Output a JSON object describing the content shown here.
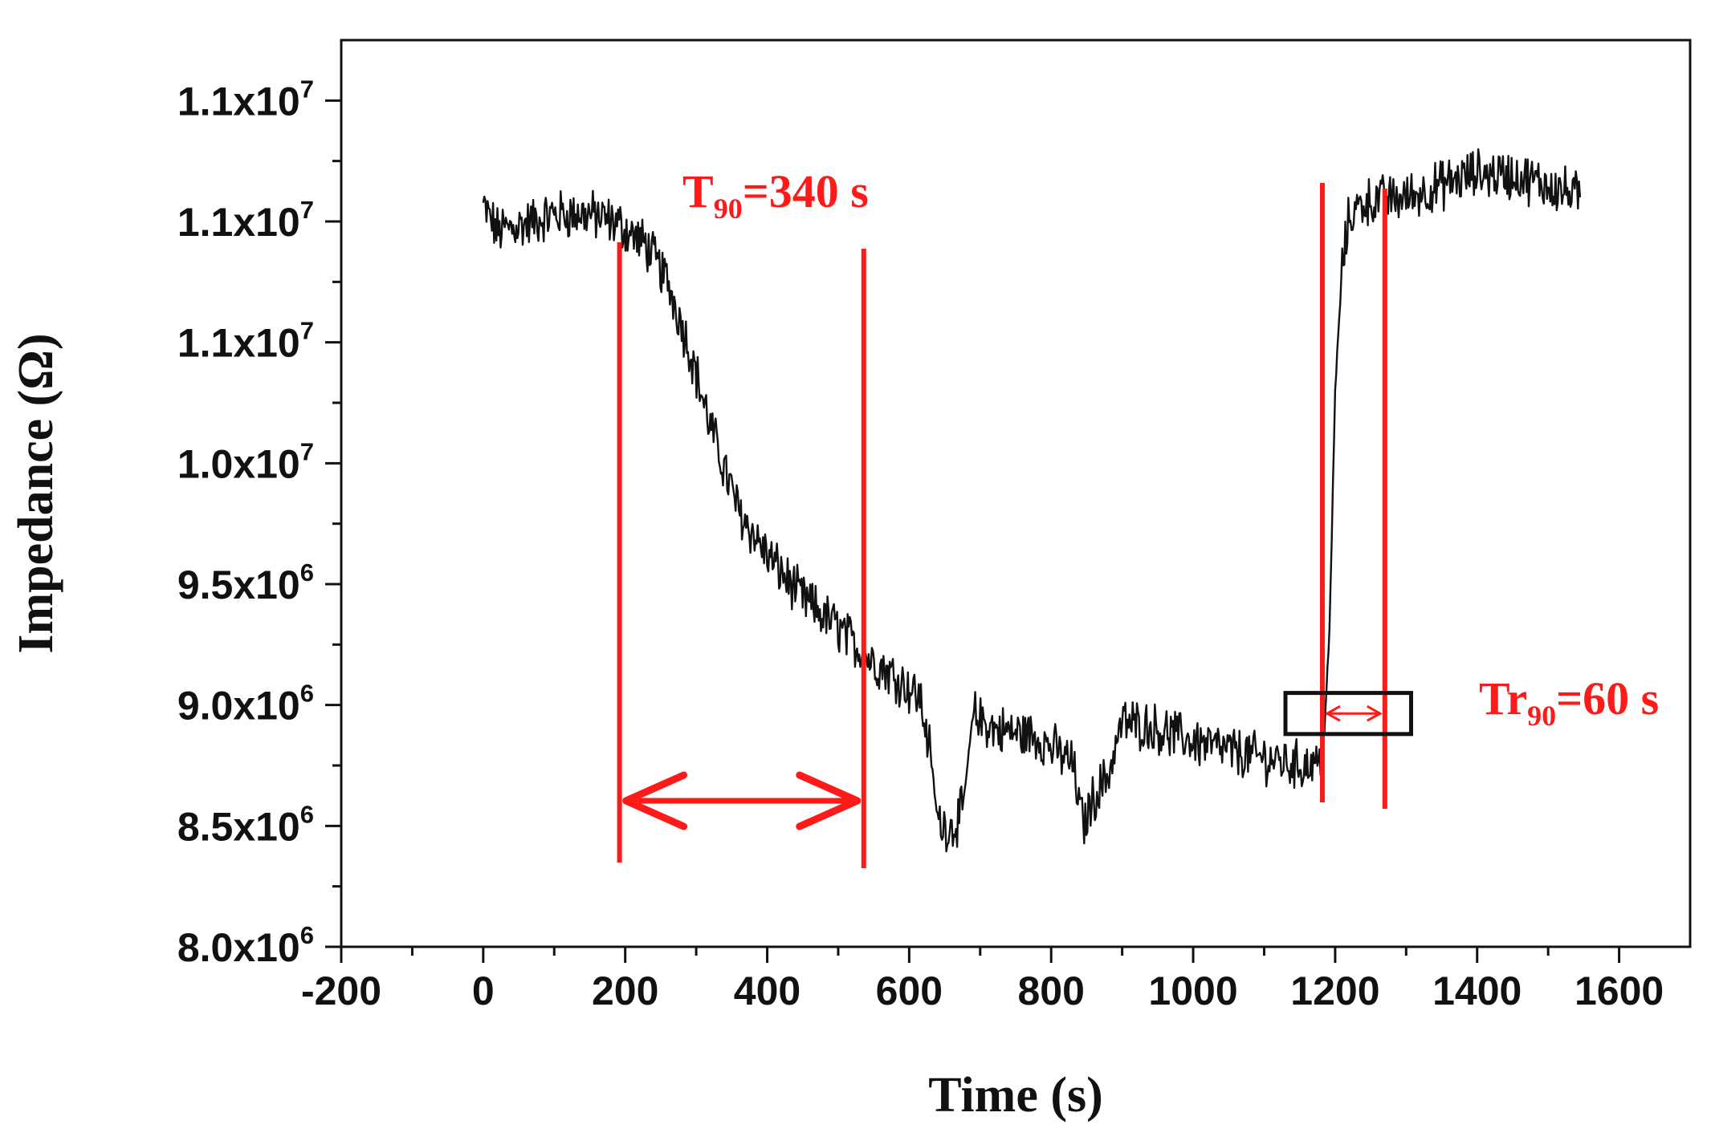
{
  "chart_data": {
    "type": "line",
    "xlabel": "Time (s)",
    "ylabel": "Impedance  (Ω)",
    "xlim": [
      -200,
      1700
    ],
    "ylim": [
      8000000,
      11750000
    ],
    "xticks": [
      -200,
      0,
      200,
      400,
      600,
      800,
      1000,
      1200,
      1400,
      1600
    ],
    "xtick_labels": [
      "-200",
      "0",
      "200",
      "400",
      "600",
      "800",
      "1000",
      "1200",
      "1400",
      "1600"
    ],
    "yticks": [
      {
        "value": 8000000,
        "mantissa": "8.0x10",
        "exponent": "6"
      },
      {
        "value": 8500000,
        "mantissa": "8.5x10",
        "exponent": "6"
      },
      {
        "value": 9000000,
        "mantissa": "9.0x10",
        "exponent": "6"
      },
      {
        "value": 9500000,
        "mantissa": "9.5x10",
        "exponent": "6"
      },
      {
        "value": 10000000,
        "mantissa": "1.0x10",
        "exponent": "7"
      },
      {
        "value": 10500000,
        "mantissa": "1.1x10",
        "exponent": "7"
      },
      {
        "value": 11000000,
        "mantissa": "1.1x10",
        "exponent": "7"
      },
      {
        "value": 11500000,
        "mantissa": "1.1x10",
        "exponent": "7"
      }
    ],
    "series": [
      {
        "name": "Impedance",
        "color": "#111111",
        "noise_amplitude": 90000,
        "x": [
          0,
          20,
          60,
          100,
          150,
          190,
          230,
          260,
          290,
          320,
          360,
          400,
          450,
          500,
          540,
          580,
          615,
          630,
          640,
          660,
          675,
          690,
          720,
          780,
          830,
          845,
          860,
          880,
          900,
          940,
          1000,
          1050,
          1100,
          1150,
          1178,
          1185,
          1192,
          1200,
          1210,
          1220,
          1240,
          1300,
          1350,
          1400,
          1450,
          1500,
          1545
        ],
        "y": [
          11060000,
          10960000,
          10990000,
          11030000,
          11030000,
          10990000,
          10900000,
          10750000,
          10480000,
          10150000,
          9800000,
          9620000,
          9440000,
          9320000,
          9200000,
          9120000,
          9030000,
          8800000,
          8520000,
          8490000,
          8560000,
          8960000,
          8900000,
          8870000,
          8760000,
          8500000,
          8620000,
          8710000,
          8930000,
          8910000,
          8850000,
          8810000,
          8780000,
          8750000,
          8760000,
          8900000,
          9300000,
          10300000,
          10820000,
          11020000,
          11080000,
          11100000,
          11150000,
          11200000,
          11190000,
          11150000,
          11100000
        ]
      }
    ],
    "annotations": {
      "t90": {
        "label": "T",
        "subscript": "90",
        "text": "=340 s",
        "x_start": 192,
        "x_end": 536,
        "color": "#ff1a1a"
      },
      "tr90": {
        "label": "Tr",
        "subscript": "90",
        "text": "=60 s",
        "x_start": 1182,
        "x_end": 1270,
        "box_x": [
          1130,
          1307
        ],
        "box_y": [
          8880000,
          9050000
        ],
        "color": "#ff1a1a"
      }
    }
  }
}
